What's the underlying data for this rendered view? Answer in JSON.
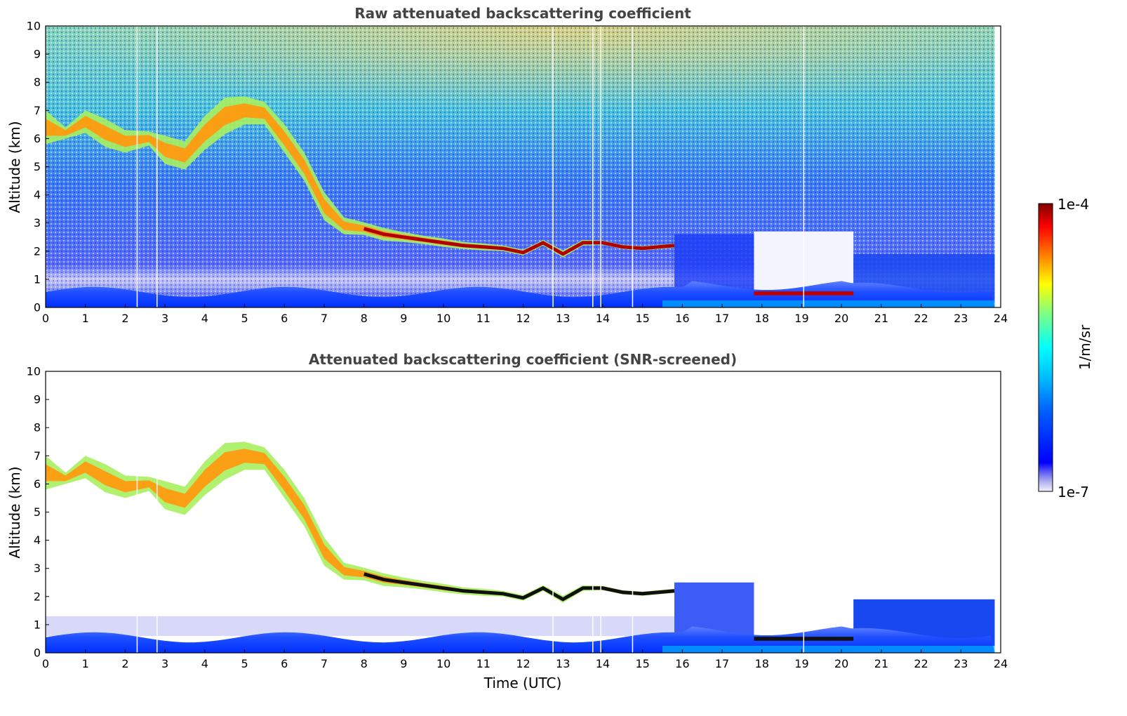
{
  "chart_data": [
    {
      "type": "heatmap",
      "title": "Raw attenuated backscattering coefficient",
      "xlabel": "",
      "ylabel": "Altitude (km)",
      "xlim": [
        0,
        24
      ],
      "ylim": [
        0,
        10
      ],
      "xticks": [
        "0",
        "1",
        "2",
        "3",
        "4",
        "5",
        "6",
        "7",
        "8",
        "9",
        "10",
        "11",
        "12",
        "13",
        "14",
        "15",
        "16",
        "17",
        "18",
        "19",
        "20",
        "21",
        "22",
        "23",
        "24"
      ],
      "yticks": [
        "0",
        "1",
        "2",
        "3",
        "4",
        "5",
        "6",
        "7",
        "8",
        "9",
        "10"
      ],
      "screened": false,
      "features": {
        "cirrus_layer": {
          "name": "cirrus",
          "points": [
            [
              0,
              6.4
            ],
            [
              0.5,
              6.2
            ],
            [
              1,
              6.6
            ],
            [
              1.5,
              6.2
            ],
            [
              2,
              5.9
            ],
            [
              2.6,
              6.0
            ],
            [
              3,
              5.6
            ],
            [
              3.5,
              5.4
            ],
            [
              4,
              6.2
            ],
            [
              4.5,
              6.8
            ],
            [
              5,
              7.0
            ],
            [
              5.5,
              6.9
            ],
            [
              6,
              6.0
            ],
            [
              6.5,
              5.0
            ],
            [
              7,
              3.6
            ],
            [
              7.5,
              2.9
            ],
            [
              8,
              2.8
            ],
            [
              8.5,
              2.6
            ],
            [
              9,
              2.5
            ],
            [
              9.5,
              2.4
            ],
            [
              10,
              2.3
            ],
            [
              10.5,
              2.2
            ],
            [
              11,
              2.15
            ],
            [
              11.5,
              2.1
            ],
            [
              12,
              1.95
            ],
            [
              12.5,
              2.3
            ],
            [
              13,
              1.9
            ],
            [
              13.5,
              2.3
            ],
            [
              14,
              2.3
            ],
            [
              14.5,
              2.15
            ],
            [
              15,
              2.1
            ],
            [
              15.8,
              2.2
            ]
          ],
          "thickness_km": [
            1.2,
            0.4,
            0.8,
            1.0,
            0.8,
            0.5,
            1.0,
            1.0,
            1.2,
            1.3,
            1.0,
            0.8,
            1.0,
            1.0,
            1.0,
            0.6,
            0.45,
            0.45,
            0.35,
            0.3,
            0.3,
            0.25,
            0.25,
            0.2,
            0.2,
            0.2,
            0.25,
            0.2,
            0.15,
            0.15,
            0.15,
            0.15
          ]
        },
        "low_cloud": {
          "x_range": [
            17.8,
            20.3
          ],
          "altitude_km": 0.5
        },
        "gap_x": [
          [
            17.8,
            20.3
          ]
        ],
        "missing_profiles_x": [
          2.3,
          2.8,
          12.75,
          13.75,
          13.95,
          14.75,
          19.05
        ],
        "data_end_x": 23.85
      }
    },
    {
      "type": "heatmap",
      "title": "Attenuated backscattering coefficient (SNR-screened)",
      "xlabel": "Time (UTC)",
      "ylabel": "Altitude (km)",
      "xlim": [
        0,
        24
      ],
      "ylim": [
        0,
        10
      ],
      "xticks": [
        "0",
        "1",
        "2",
        "3",
        "4",
        "5",
        "6",
        "7",
        "8",
        "9",
        "10",
        "11",
        "12",
        "13",
        "14",
        "15",
        "16",
        "17",
        "18",
        "19",
        "20",
        "21",
        "22",
        "23",
        "24"
      ],
      "yticks": [
        "0",
        "1",
        "2",
        "3",
        "4",
        "5",
        "6",
        "7",
        "8",
        "9",
        "10"
      ],
      "screened": true
    }
  ],
  "colorbar": {
    "label": "1/m/sr",
    "max_label": "1e-4",
    "min_label": "1e-7",
    "colormap": "jet",
    "colors": [
      "#e8e8f8",
      "#b8b8f0",
      "#0000ff",
      "#0080ff",
      "#00ffff",
      "#80ff80",
      "#ffff00",
      "#ff8000",
      "#ff0000",
      "#800000"
    ]
  }
}
